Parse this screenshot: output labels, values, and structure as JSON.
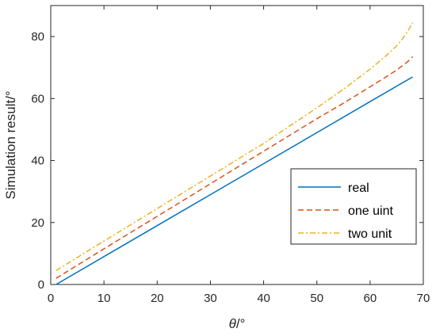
{
  "chart_data": {
    "type": "line",
    "xlabel_symbol": "θ",
    "xlabel_unit": "/°",
    "ylabel": "Simulation result/°",
    "xlim": [
      0,
      70
    ],
    "ylim": [
      0,
      90
    ],
    "x_ticks": [
      "0",
      "10",
      "20",
      "30",
      "40",
      "50",
      "60",
      "70"
    ],
    "y_ticks": [
      "0",
      "20",
      "40",
      "60",
      "80"
    ],
    "grid": false,
    "legend_position": "right, lower-middle",
    "series": [
      {
        "name": "real",
        "color": "#0072BD",
        "dash": "solid",
        "x": [
          1,
          10,
          20,
          30,
          40,
          50,
          60,
          68
        ],
        "y": [
          0,
          9,
          19,
          29,
          39,
          49,
          59,
          67
        ]
      },
      {
        "name": "one uint",
        "color": "#D95319",
        "dash": "dashed",
        "x": [
          1,
          10,
          20,
          30,
          40,
          50,
          55,
          60,
          63,
          65,
          67,
          68
        ],
        "y": [
          2,
          11.5,
          22,
          32.5,
          43,
          53.5,
          58.5,
          63.8,
          67,
          69.2,
          71.8,
          73.5
        ]
      },
      {
        "name": "two unit",
        "color": "#EDB120",
        "dash": "dashdot",
        "x": [
          1,
          10,
          20,
          30,
          40,
          50,
          55,
          60,
          63,
          65,
          66,
          67,
          68
        ],
        "y": [
          4.5,
          14,
          24.5,
          35,
          45.5,
          57,
          63,
          69.5,
          73.8,
          77,
          79,
          81.5,
          84.5
        ]
      }
    ]
  }
}
